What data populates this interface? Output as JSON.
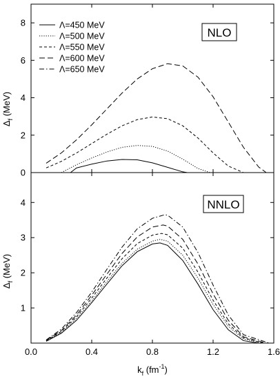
{
  "chart_data": [
    {
      "type": "line",
      "panel_label": "NLO",
      "ylabel": "Δ",
      "ylabel_sub": "f",
      "ylabel_unit": " (MeV)",
      "xlim": [
        0.0,
        1.6
      ],
      "ylim": [
        0,
        9
      ],
      "yticks": [
        0,
        2,
        4,
        6,
        8
      ],
      "yticklabels": [
        "0",
        "2",
        "4",
        "6",
        "8"
      ],
      "legend_position": "top-left",
      "legend_entries": [
        "Λ=450 MeV",
        "Λ=500 MeV",
        "Λ=550 MeV",
        "Λ=600 MeV",
        "Λ=650 MeV"
      ],
      "series": [
        {
          "name": "Λ=450 MeV",
          "dash": "solid",
          "x": [
            0.26,
            0.3,
            0.4,
            0.5,
            0.6,
            0.7,
            0.8,
            0.9,
            1.0,
            1.03
          ],
          "y": [
            0.0,
            0.25,
            0.45,
            0.62,
            0.7,
            0.68,
            0.52,
            0.28,
            0.04,
            0.0
          ]
        },
        {
          "name": "Λ=500 MeV",
          "dash": "dot",
          "x": [
            0.2,
            0.3,
            0.4,
            0.5,
            0.6,
            0.7,
            0.8,
            0.9,
            1.0,
            1.1,
            1.18
          ],
          "y": [
            0.0,
            0.42,
            0.78,
            1.1,
            1.35,
            1.45,
            1.4,
            1.15,
            0.72,
            0.22,
            0.0
          ]
        },
        {
          "name": "Λ=550 MeV",
          "dash": "dash",
          "x": [
            0.1,
            0.2,
            0.3,
            0.4,
            0.5,
            0.6,
            0.7,
            0.8,
            0.9,
            1.0,
            1.1,
            1.2,
            1.3,
            1.4
          ],
          "y": [
            0.25,
            0.6,
            1.05,
            1.55,
            2.05,
            2.5,
            2.83,
            2.97,
            2.88,
            2.5,
            1.85,
            1.05,
            0.35,
            0.0
          ]
        },
        {
          "name": "Λ=600 MeV",
          "dash": "longdash",
          "x": [
            0.1,
            0.2,
            0.3,
            0.4,
            0.5,
            0.6,
            0.7,
            0.8,
            0.9,
            1.0,
            1.1,
            1.2,
            1.3,
            1.4,
            1.5,
            1.55
          ],
          "y": [
            0.5,
            1.05,
            1.75,
            2.55,
            3.4,
            4.25,
            5.0,
            5.55,
            5.82,
            5.7,
            5.1,
            4.05,
            2.7,
            1.35,
            0.3,
            0.0
          ]
        }
      ]
    },
    {
      "type": "line",
      "panel_label": "NNLO",
      "ylabel": "Δ",
      "ylabel_sub": "f",
      "ylabel_unit": " (MeV)",
      "xlabel": "k",
      "xlabel_sub": "f",
      "xlabel_unit": " (fm",
      "xlabel_exp": "-1",
      "xlabel_close": ")",
      "xlim": [
        0.0,
        1.6
      ],
      "ylim": [
        0,
        4.85
      ],
      "xticks": [
        0.0,
        0.4,
        0.8,
        1.2,
        1.6
      ],
      "xticklabels": [
        "0.0",
        "0.4",
        "0.8",
        "1.2",
        "1.6"
      ],
      "yticks": [
        1,
        2,
        3,
        4
      ],
      "yticklabels": [
        "1",
        "2",
        "3",
        "4"
      ],
      "series": [
        {
          "name": "Λ=450 MeV",
          "dash": "solid",
          "x": [
            0.1,
            0.2,
            0.3,
            0.4,
            0.5,
            0.6,
            0.7,
            0.8,
            0.85,
            0.9,
            1.0,
            1.1,
            1.2,
            1.3,
            1.4,
            1.5
          ],
          "y": [
            0.05,
            0.28,
            0.65,
            1.15,
            1.68,
            2.2,
            2.6,
            2.82,
            2.85,
            2.78,
            2.35,
            1.68,
            0.95,
            0.38,
            0.07,
            0.0
          ]
        },
        {
          "name": "Λ=500 MeV",
          "dash": "dot",
          "x": [
            0.1,
            0.2,
            0.3,
            0.4,
            0.5,
            0.6,
            0.7,
            0.8,
            0.85,
            0.9,
            1.0,
            1.1,
            1.2,
            1.3,
            1.4,
            1.52
          ],
          "y": [
            0.06,
            0.3,
            0.7,
            1.2,
            1.75,
            2.27,
            2.67,
            2.9,
            2.95,
            2.9,
            2.5,
            1.85,
            1.1,
            0.48,
            0.12,
            0.0
          ]
        },
        {
          "name": "Λ=550 MeV",
          "dash": "dash",
          "x": [
            0.1,
            0.2,
            0.3,
            0.4,
            0.5,
            0.6,
            0.7,
            0.8,
            0.86,
            0.9,
            1.0,
            1.1,
            1.2,
            1.3,
            1.4,
            1.53
          ],
          "y": [
            0.07,
            0.33,
            0.75,
            1.28,
            1.85,
            2.4,
            2.83,
            3.07,
            3.12,
            3.08,
            2.7,
            2.02,
            1.22,
            0.55,
            0.15,
            0.0
          ]
        },
        {
          "name": "Λ=600 MeV",
          "dash": "longdash",
          "x": [
            0.1,
            0.2,
            0.3,
            0.4,
            0.5,
            0.6,
            0.7,
            0.8,
            0.87,
            0.9,
            1.0,
            1.1,
            1.2,
            1.3,
            1.4,
            1.55
          ],
          "y": [
            0.08,
            0.36,
            0.8,
            1.36,
            1.96,
            2.55,
            3.02,
            3.3,
            3.36,
            3.33,
            2.95,
            2.25,
            1.4,
            0.65,
            0.18,
            0.0
          ]
        },
        {
          "name": "Λ=650 MeV",
          "dash": "dashdot",
          "x": [
            0.1,
            0.2,
            0.3,
            0.4,
            0.5,
            0.6,
            0.7,
            0.8,
            0.88,
            0.9,
            1.0,
            1.1,
            1.2,
            1.3,
            1.4,
            1.57
          ],
          "y": [
            0.09,
            0.4,
            0.87,
            1.45,
            2.1,
            2.73,
            3.25,
            3.55,
            3.65,
            3.64,
            3.3,
            2.58,
            1.65,
            0.8,
            0.24,
            0.0
          ]
        }
      ]
    }
  ]
}
